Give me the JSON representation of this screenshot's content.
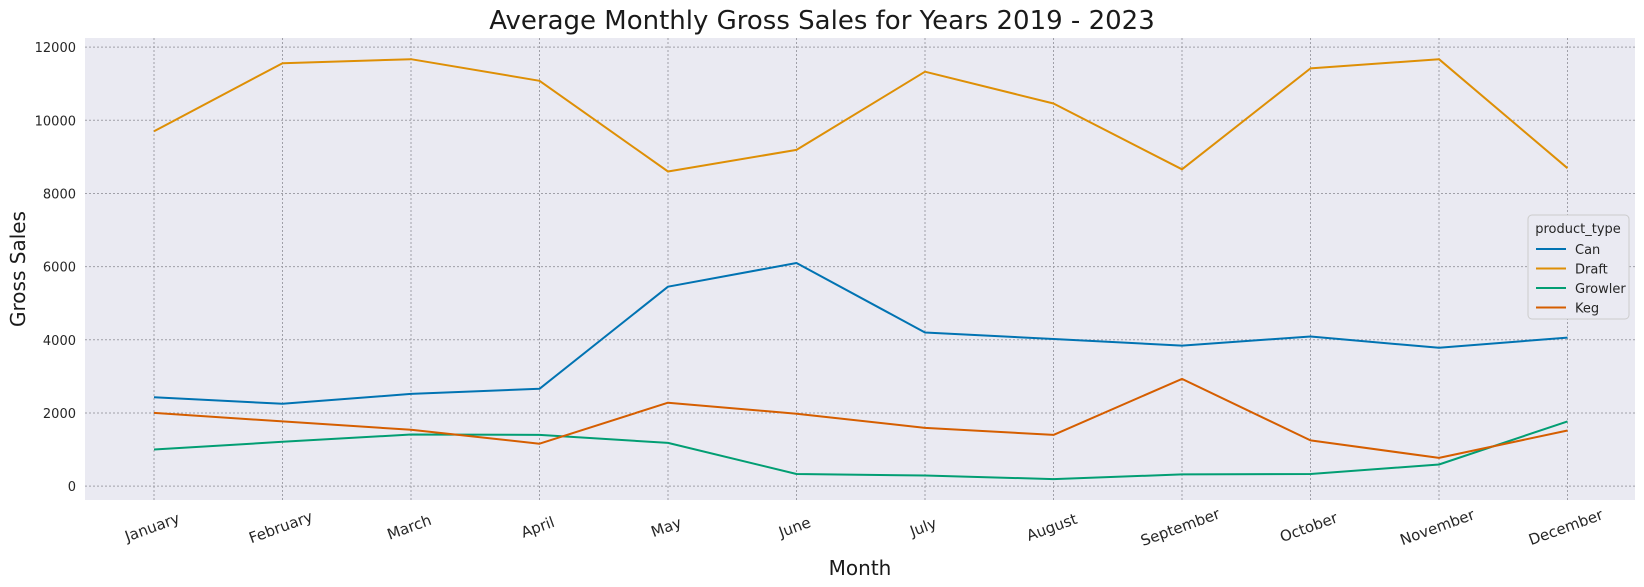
{
  "chart_data": {
    "type": "line",
    "title": "Average Monthly Gross Sales for Years 2019 - 2023",
    "xlabel": "Month",
    "ylabel": "Gross Sales",
    "categories": [
      "January",
      "February",
      "March",
      "April",
      "May",
      "June",
      "July",
      "August",
      "September",
      "October",
      "November",
      "December"
    ],
    "ylim": [
      -380,
      12250
    ],
    "yticks": [
      0,
      2000,
      4000,
      6000,
      8000,
      10000,
      12000
    ],
    "grid": true,
    "legend": {
      "title": "product_type",
      "position": "center-right"
    },
    "series": [
      {
        "name": "Can",
        "color": "#0173b2",
        "values": [
          2430,
          2250,
          2520,
          2660,
          5450,
          6100,
          4200,
          4020,
          3840,
          4090,
          3780,
          4060
        ]
      },
      {
        "name": "Draft",
        "color": "#de8f05",
        "values": [
          9700,
          11560,
          11670,
          11080,
          8600,
          9190,
          11330,
          10460,
          8660,
          11420,
          11670,
          8690
        ]
      },
      {
        "name": "Growler",
        "color": "#029e73",
        "values": [
          1000,
          1210,
          1410,
          1400,
          1180,
          330,
          290,
          190,
          320,
          330,
          590,
          1770
        ]
      },
      {
        "name": "Keg",
        "color": "#d55e00",
        "values": [
          2000,
          1770,
          1540,
          1160,
          2280,
          1980,
          1590,
          1400,
          2930,
          1250,
          770,
          1520
        ]
      }
    ]
  }
}
